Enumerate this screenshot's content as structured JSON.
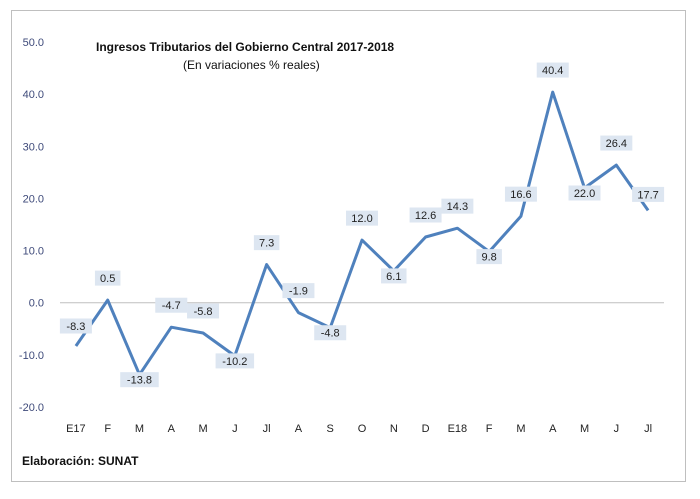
{
  "chart_data": {
    "type": "line",
    "title": "Ingresos Tributarios del Gobierno Central 2017-2018",
    "subtitle": "(En variaciones % reales)",
    "categories": [
      "E17",
      "F",
      "M",
      "A",
      "M",
      "J",
      "Jl",
      "A",
      "S",
      "O",
      "N",
      "D",
      "E18",
      "F",
      "M",
      "A",
      "M",
      "J",
      "Jl"
    ],
    "series": [
      {
        "values": [
          -8.3,
          0.5,
          -13.8,
          -4.7,
          -5.8,
          -10.2,
          7.3,
          -1.9,
          -4.8,
          12.0,
          6.1,
          12.6,
          14.3,
          9.8,
          16.6,
          40.4,
          22.0,
          26.4,
          17.7
        ]
      }
    ],
    "data_labels": [
      "-8.3",
      "0.5",
      "-13.8",
      "-4.7",
      "-5.8",
      "-10.2",
      "7.3",
      "-1.9",
      "-4.8",
      "12.0",
      "6.1",
      "12.6",
      "14.3",
      "9.8",
      "16.6",
      "40.4",
      "22.0",
      "26.4",
      "17.7"
    ],
    "y_ticks": [
      "50.0",
      "40.0",
      "30.0",
      "20.0",
      "10.0",
      "0.0",
      "-10.0",
      "-20.0"
    ],
    "ylim": [
      -20,
      50
    ],
    "xlabel": "",
    "ylabel": "",
    "grid": false,
    "legend": "none",
    "colors": {
      "line": "#4f81bd",
      "label_box": "#dde6f1",
      "axis": "#bfbfbf"
    }
  },
  "footer": "Elaboración: SUNAT"
}
